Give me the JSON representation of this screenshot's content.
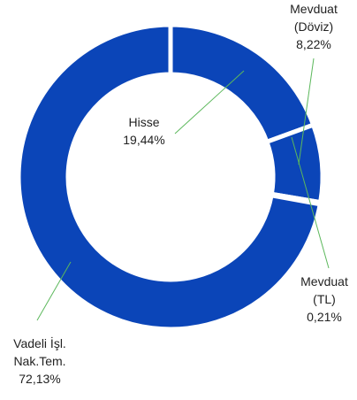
{
  "chart_data": {
    "type": "donut",
    "categories": [
      "Hisse",
      "Mevduat (Döviz)",
      "Mevduat (TL)",
      "Vadeli İşl. Nak.Tem."
    ],
    "values": [
      19.44,
      8.22,
      0.21,
      72.13
    ],
    "value_labels": [
      "19,44%",
      "8,22%",
      "0,21%",
      "72,13%"
    ],
    "color": "#0b45b8"
  }
}
